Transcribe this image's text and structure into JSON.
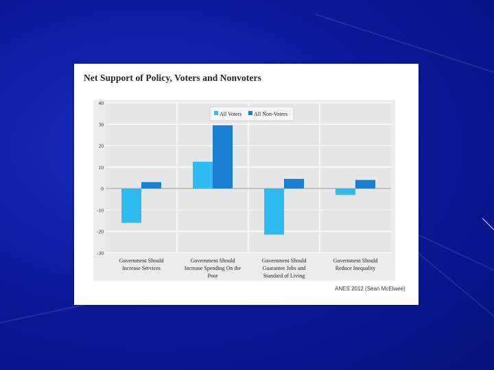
{
  "slide": {
    "source_note": "ANES 2012 (Sean McElwee)"
  },
  "chart_data": {
    "type": "bar",
    "title": "Net Support of Policy, Voters and Nonvoters",
    "categories": [
      [
        "Government Should",
        "Increase Services"
      ],
      [
        "Government Should",
        "Increase Spending On the",
        "Poor"
      ],
      [
        "Government Should",
        "Guarantee Jobs and",
        "Standard of Living"
      ],
      [
        "Government Should",
        "Reduce Inequality"
      ]
    ],
    "series": [
      {
        "name": "All Voters",
        "values": [
          -16,
          12.5,
          -21.5,
          -3
        ],
        "color": "#2ebcf2"
      },
      {
        "name": "All Non-Voters",
        "values": [
          3,
          29.5,
          4.5,
          4
        ],
        "color": "#1a7fd0"
      }
    ],
    "ylim": [
      -30,
      40
    ],
    "yticks": [
      "40",
      "30",
      "20",
      "10",
      "0",
      "-10",
      "-20",
      "-30"
    ],
    "legend_position": "top-center",
    "grid": true
  }
}
